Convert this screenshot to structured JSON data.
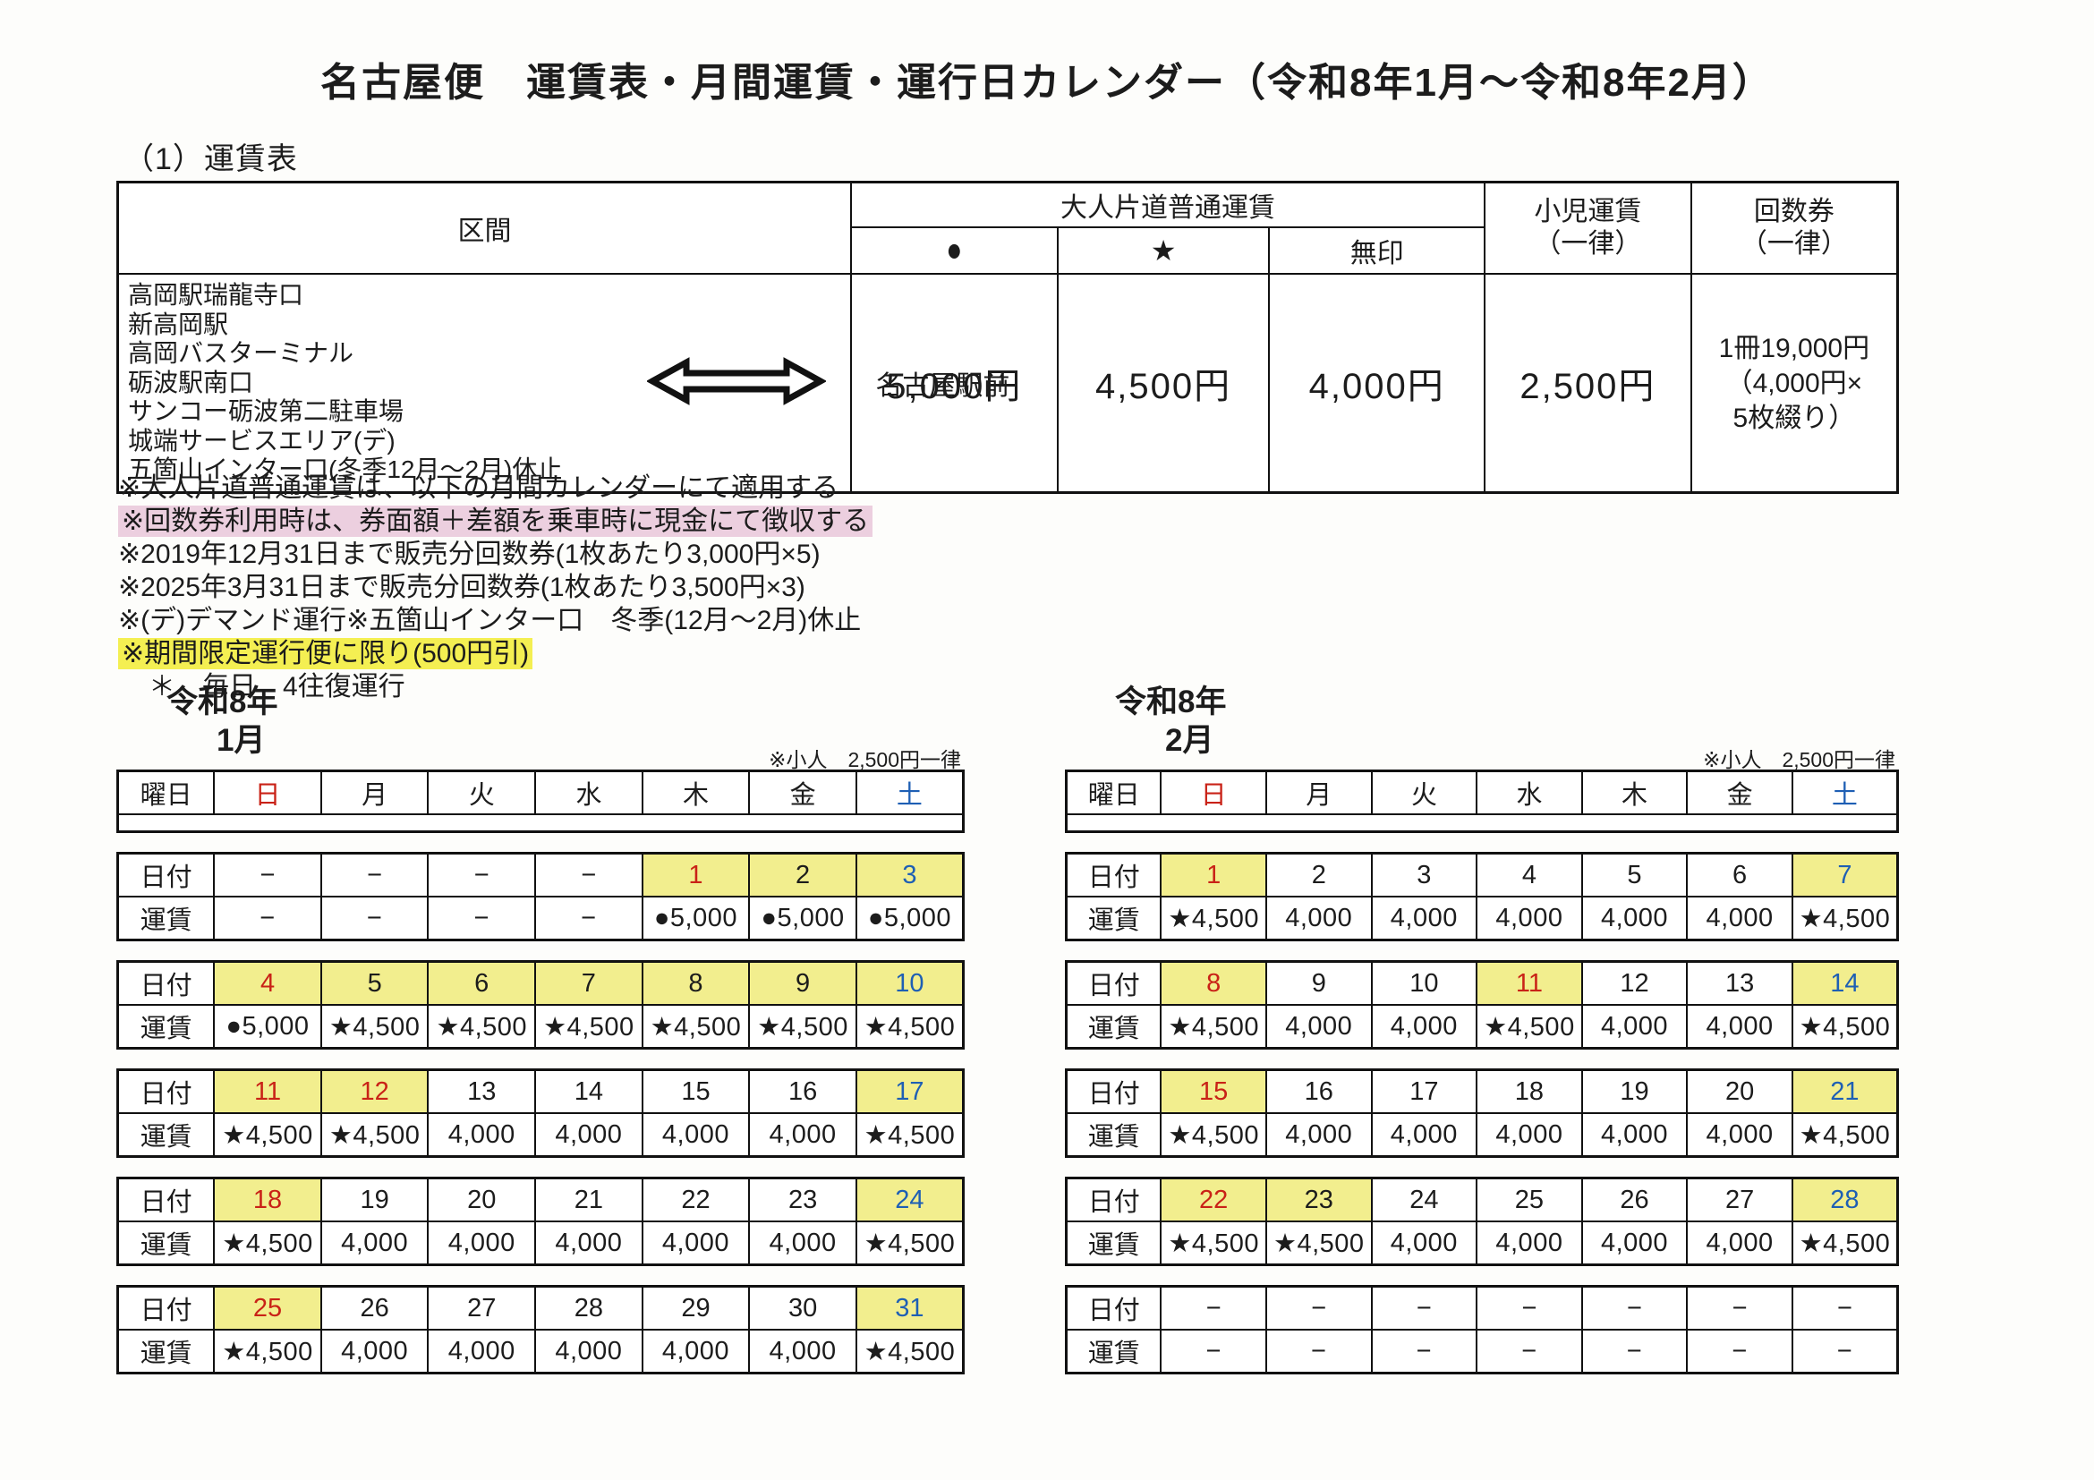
{
  "title": "名古屋便　運賃表・月間運賃・運行日カレンダー（令和8年1月～令和8年2月）",
  "fare_section_label": "（1）運賃表",
  "colors": {
    "cell_highlight_yellow": "#f2ee8e",
    "note_highlight_yellow": "#f4ef52",
    "note_highlight_pink": "#eccfdf",
    "sunday_holiday_red": "#c92217",
    "saturday_blue": "#1e5fb4",
    "border_black": "#111111"
  },
  "fare_table": {
    "headers": {
      "section": "区間",
      "adult_group": "大人片道普通運賃",
      "mark_circle": "●",
      "mark_star": "★",
      "mark_none": "無印",
      "child_line1": "小児運賃",
      "child_line2": "（一律）",
      "coupon_line1": "回数券",
      "coupon_line2": "（一律）"
    },
    "stations": [
      "高岡駅瑞龍寺口",
      "新高岡駅",
      "高岡バスターミナル",
      "砺波駅南口",
      "サンコー砺波第二駐車場",
      "城端サービスエリア(デ)",
      "五箇山インター口(冬季12月～2月)休止"
    ],
    "arrow_icon": "double-arrow",
    "destination": "名古屋駅前",
    "fares": {
      "circle": "5,000円",
      "star": "4,500円",
      "none": "4,000円",
      "child": "2,500円",
      "coupon_lines": [
        "1冊19,000円",
        "（4,000円×",
        "5枚綴り）"
      ]
    }
  },
  "notes": [
    {
      "text": "※大人片道普通運賃は、以下の月間カレンダーにて適用する"
    },
    {
      "text": "※回数券利用時は、券面額＋差額を乗車時に現金にて徴収する",
      "highlight": "pink"
    },
    {
      "text": "※2019年12月31日まで販売分回数券(1枚あたり3,000円×5)"
    },
    {
      "text": "※2025年3月31日まで販売分回数券(1枚あたり3,500円×3)"
    },
    {
      "text": "※(デ)デマンド運行※五箇山インター口　冬季(12月～2月)休止"
    },
    {
      "text": "※期間限定運行便に限り(500円引)",
      "highlight": "yellow"
    },
    {
      "text": "＊　毎日　4往復運行",
      "indent": true
    }
  ],
  "calendars": [
    {
      "era_year": "令和8年",
      "month": "1月",
      "child_note": "※小人　2,500円一律",
      "weekday_label": "曜日",
      "date_label": "日付",
      "fare_label": "運賃",
      "weekdays": [
        {
          "label": "日",
          "color": "red"
        },
        {
          "label": "月"
        },
        {
          "label": "火"
        },
        {
          "label": "水"
        },
        {
          "label": "木"
        },
        {
          "label": "金"
        },
        {
          "label": "土",
          "color": "blue"
        }
      ],
      "weeks": [
        {
          "dates": [
            {
              "t": "−"
            },
            {
              "t": "−"
            },
            {
              "t": "−"
            },
            {
              "t": "−"
            },
            {
              "t": "1",
              "c": "red",
              "h": true
            },
            {
              "t": "2",
              "h": true
            },
            {
              "t": "3",
              "c": "blue",
              "h": true
            }
          ],
          "fares": [
            "−",
            "−",
            "−",
            "−",
            "●5,000",
            "●5,000",
            "●5,000"
          ]
        },
        {
          "dates": [
            {
              "t": "4",
              "c": "red",
              "h": true
            },
            {
              "t": "5",
              "h": true
            },
            {
              "t": "6",
              "h": true
            },
            {
              "t": "7",
              "h": true
            },
            {
              "t": "8",
              "h": true
            },
            {
              "t": "9",
              "h": true
            },
            {
              "t": "10",
              "c": "blue",
              "h": true
            }
          ],
          "fares": [
            "●5,000",
            "★4,500",
            "★4,500",
            "★4,500",
            "★4,500",
            "★4,500",
            "★4,500"
          ]
        },
        {
          "dates": [
            {
              "t": "11",
              "c": "red",
              "h": true
            },
            {
              "t": "12",
              "c": "red",
              "h": true
            },
            {
              "t": "13"
            },
            {
              "t": "14"
            },
            {
              "t": "15"
            },
            {
              "t": "16"
            },
            {
              "t": "17",
              "c": "blue",
              "h": true
            }
          ],
          "fares": [
            "★4,500",
            "★4,500",
            "4,000",
            "4,000",
            "4,000",
            "4,000",
            "★4,500"
          ]
        },
        {
          "dates": [
            {
              "t": "18",
              "c": "red",
              "h": true
            },
            {
              "t": "19"
            },
            {
              "t": "20"
            },
            {
              "t": "21"
            },
            {
              "t": "22"
            },
            {
              "t": "23"
            },
            {
              "t": "24",
              "c": "blue",
              "h": true
            }
          ],
          "fares": [
            "★4,500",
            "4,000",
            "4,000",
            "4,000",
            "4,000",
            "4,000",
            "★4,500"
          ]
        },
        {
          "dates": [
            {
              "t": "25",
              "c": "red",
              "h": true
            },
            {
              "t": "26"
            },
            {
              "t": "27"
            },
            {
              "t": "28"
            },
            {
              "t": "29"
            },
            {
              "t": "30"
            },
            {
              "t": "31",
              "c": "blue",
              "h": true
            }
          ],
          "fares": [
            "★4,500",
            "4,000",
            "4,000",
            "4,000",
            "4,000",
            "4,000",
            "★4,500"
          ]
        }
      ]
    },
    {
      "era_year": "令和8年",
      "month": "2月",
      "child_note": "※小人　2,500円一律",
      "weekday_label": "曜日",
      "date_label": "日付",
      "fare_label": "運賃",
      "weekdays": [
        {
          "label": "日",
          "color": "red"
        },
        {
          "label": "月"
        },
        {
          "label": "火"
        },
        {
          "label": "水"
        },
        {
          "label": "木"
        },
        {
          "label": "金"
        },
        {
          "label": "土",
          "color": "blue"
        }
      ],
      "weeks": [
        {
          "dates": [
            {
              "t": "1",
              "c": "red",
              "h": true
            },
            {
              "t": "2"
            },
            {
              "t": "3"
            },
            {
              "t": "4"
            },
            {
              "t": "5"
            },
            {
              "t": "6"
            },
            {
              "t": "7",
              "c": "blue",
              "h": true
            }
          ],
          "fares": [
            "★4,500",
            "4,000",
            "4,000",
            "4,000",
            "4,000",
            "4,000",
            "★4,500"
          ]
        },
        {
          "dates": [
            {
              "t": "8",
              "c": "red",
              "h": true
            },
            {
              "t": "9"
            },
            {
              "t": "10"
            },
            {
              "t": "11",
              "c": "red",
              "h": true
            },
            {
              "t": "12"
            },
            {
              "t": "13"
            },
            {
              "t": "14",
              "c": "blue",
              "h": true
            }
          ],
          "fares": [
            "★4,500",
            "4,000",
            "4,000",
            "★4,500",
            "4,000",
            "4,000",
            "★4,500"
          ]
        },
        {
          "dates": [
            {
              "t": "15",
              "c": "red",
              "h": true
            },
            {
              "t": "16"
            },
            {
              "t": "17"
            },
            {
              "t": "18"
            },
            {
              "t": "19"
            },
            {
              "t": "20"
            },
            {
              "t": "21",
              "c": "blue",
              "h": true
            }
          ],
          "fares": [
            "★4,500",
            "4,000",
            "4,000",
            "4,000",
            "4,000",
            "4,000",
            "★4,500"
          ]
        },
        {
          "dates": [
            {
              "t": "22",
              "c": "red",
              "h": true
            },
            {
              "t": "23",
              "h": true
            },
            {
              "t": "24"
            },
            {
              "t": "25"
            },
            {
              "t": "26"
            },
            {
              "t": "27"
            },
            {
              "t": "28",
              "c": "blue",
              "h": true
            }
          ],
          "fares": [
            "★4,500",
            "★4,500",
            "4,000",
            "4,000",
            "4,000",
            "4,000",
            "★4,500"
          ]
        },
        {
          "dates": [
            {
              "t": "−"
            },
            {
              "t": "−"
            },
            {
              "t": "−"
            },
            {
              "t": "−"
            },
            {
              "t": "−"
            },
            {
              "t": "−"
            },
            {
              "t": "−"
            }
          ],
          "fares": [
            "−",
            "−",
            "−",
            "−",
            "−",
            "−",
            "−"
          ]
        }
      ]
    }
  ]
}
